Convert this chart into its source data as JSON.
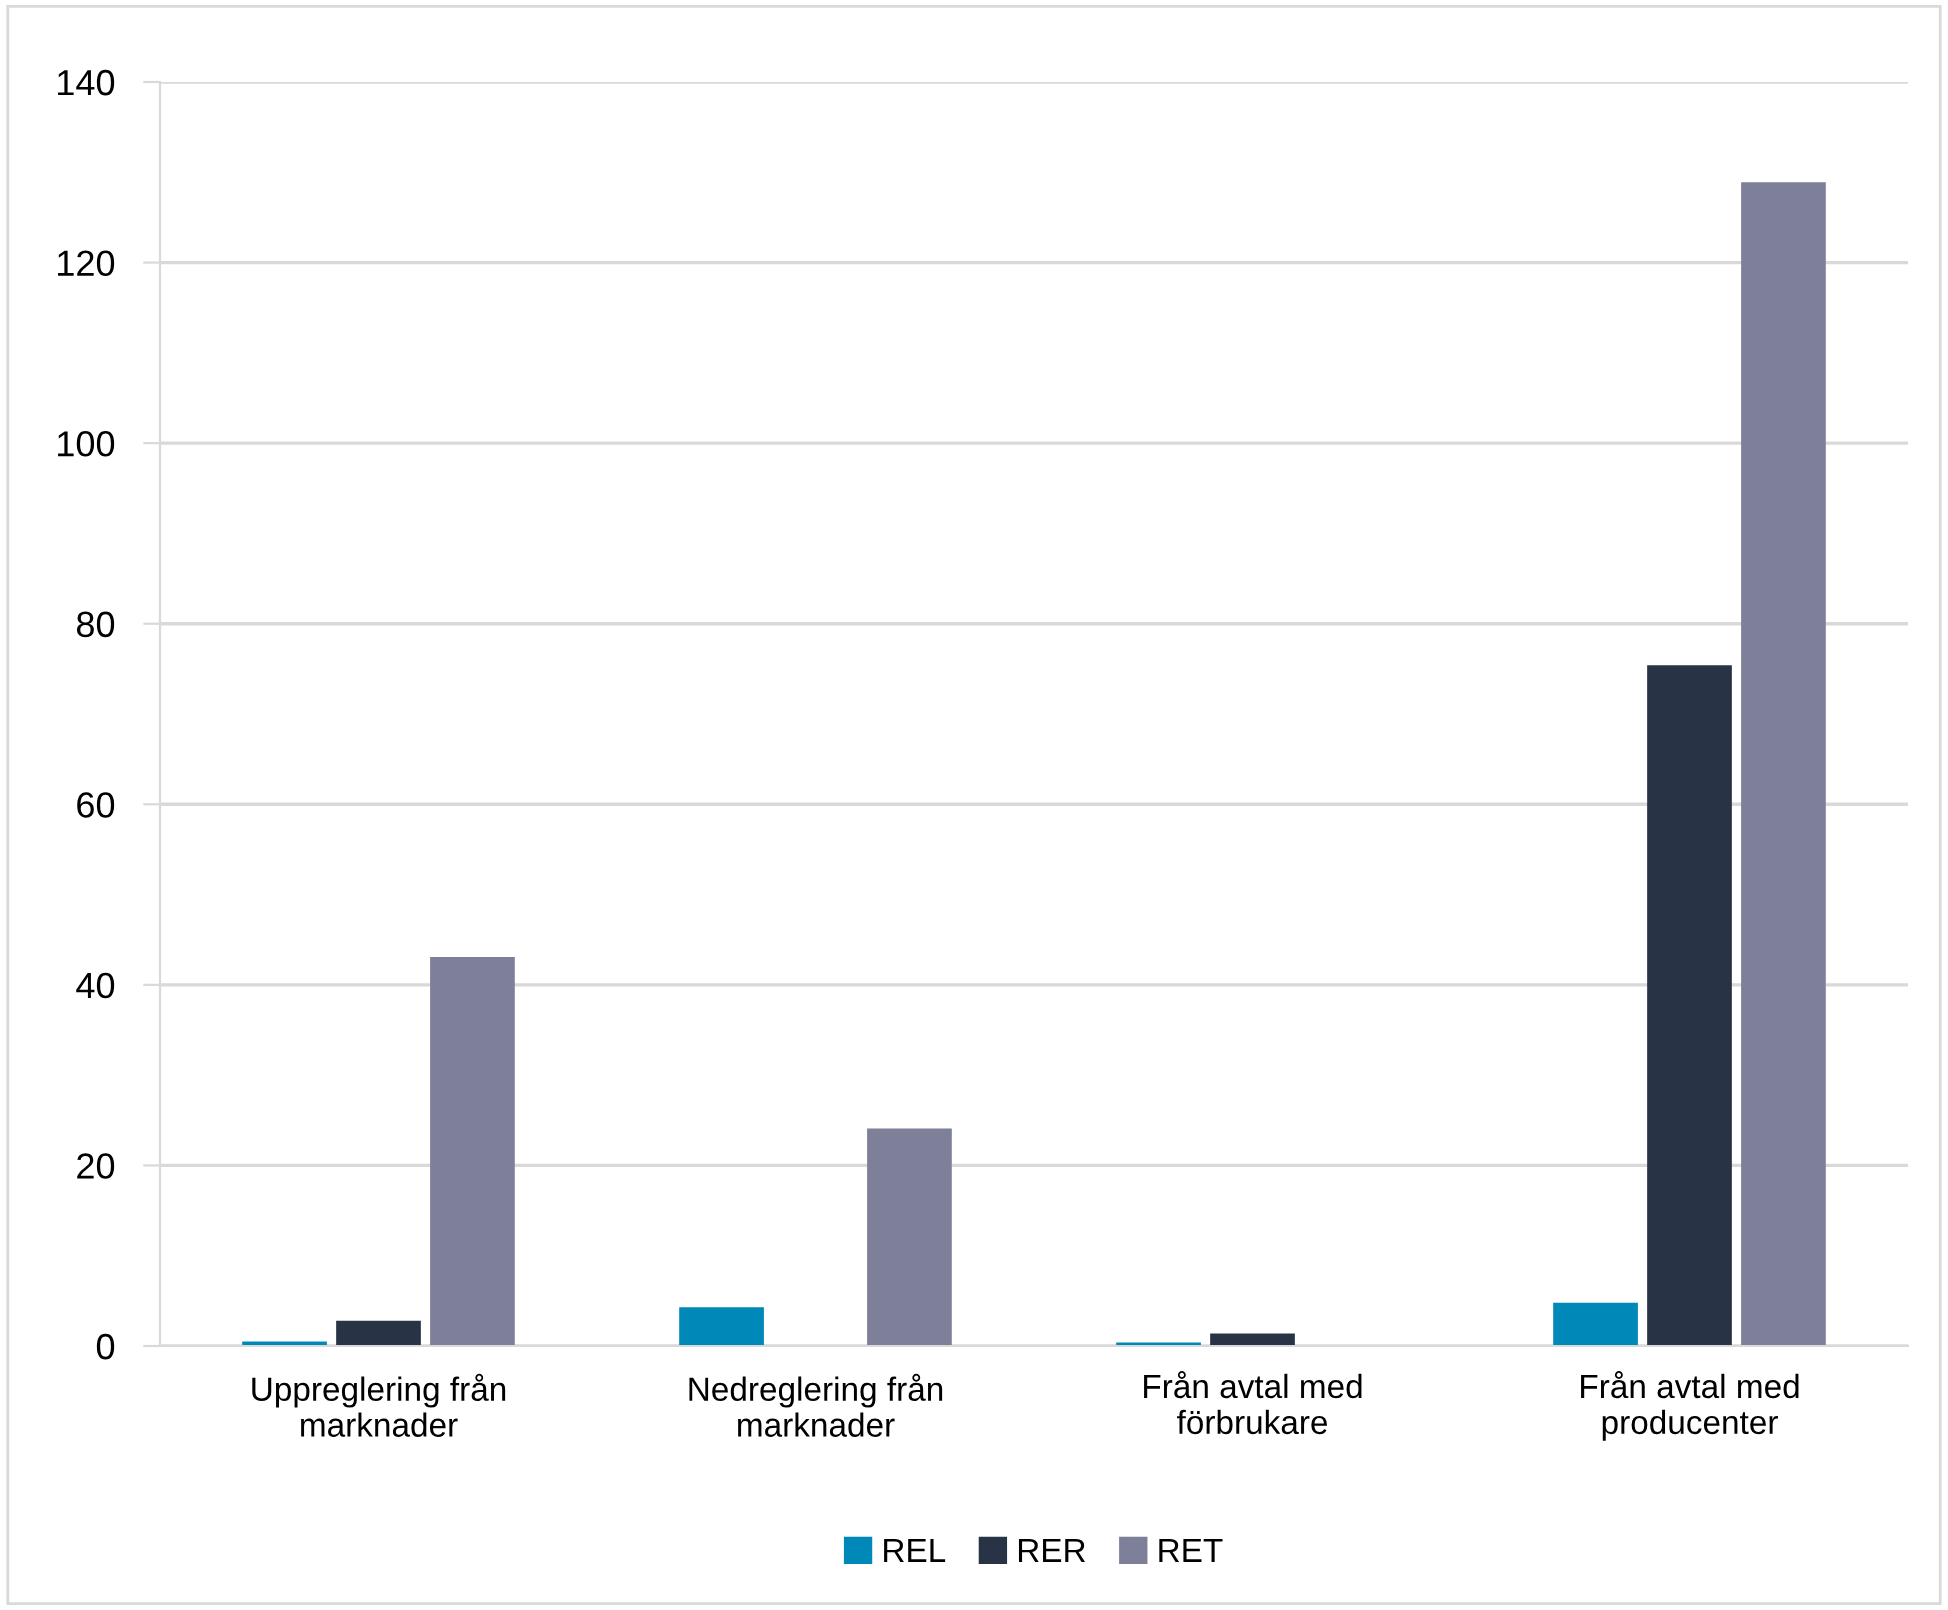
{
  "chart_data": {
    "type": "bar",
    "categories": [
      "Uppreglering från\nmarknader",
      "Nedreglering från\nmarknader",
      "Från avtal med\nförbrukare",
      "Från avtal med\nproducenter"
    ],
    "series": [
      {
        "name": "REL",
        "color": "#0089b8",
        "values": [
          0.4,
          4.2,
          0.3,
          4.7
        ]
      },
      {
        "name": "RER",
        "color": "#283446",
        "values": [
          2.7,
          0,
          1.3,
          75.3
        ]
      },
      {
        "name": "RET",
        "color": "#7e7f98",
        "values": [
          43,
          24,
          0,
          128.8
        ]
      }
    ],
    "ylim": [
      0,
      140
    ],
    "yticks": [
      0,
      20,
      40,
      60,
      80,
      100,
      120,
      140
    ],
    "grid": "y",
    "legend": "bottom"
  }
}
